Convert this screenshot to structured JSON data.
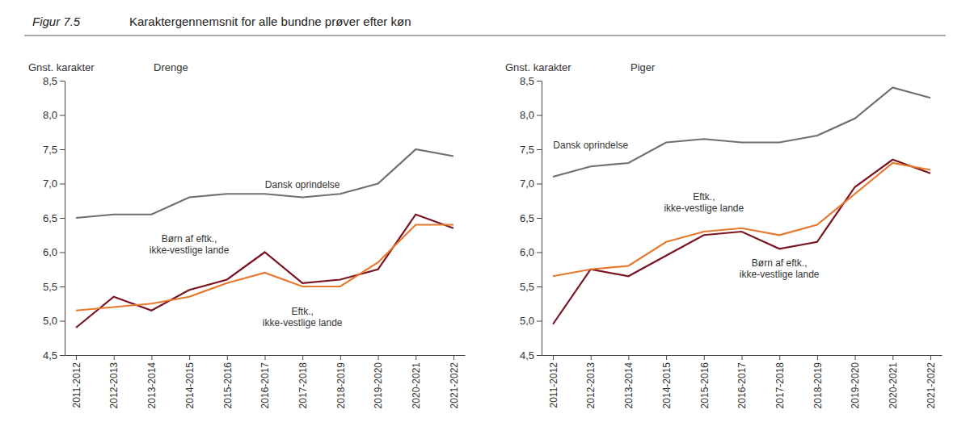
{
  "figure": {
    "label": "Figur 7.5",
    "title": "Karaktergennemsnit for alle bundne prøver efter køn"
  },
  "chart_data": [
    {
      "type": "line",
      "title": "Drenge",
      "y_label": "Gnst. karakter",
      "categories": [
        "2011-2012",
        "2012-2013",
        "2013-2014",
        "2014-2015",
        "2015-2016",
        "2016-2017",
        "2017-2018",
        "2018-2019",
        "2019-2020",
        "2020-2021",
        "2021-2022"
      ],
      "ylim": [
        4.5,
        8.5
      ],
      "yticks": [
        {
          "value": 4.5,
          "label": "4,5"
        },
        {
          "value": 5,
          "label": "5,0"
        },
        {
          "value": 5.5,
          "label": "5,5"
        },
        {
          "value": 6,
          "label": "6,0"
        },
        {
          "value": 6.5,
          "label": "6,5"
        },
        {
          "value": 7,
          "label": "7,0"
        },
        {
          "value": 7.5,
          "label": "7,5"
        },
        {
          "value": 8,
          "label": "8,0"
        },
        {
          "value": 8.5,
          "label": "8,5"
        }
      ],
      "grid": false,
      "series": [
        {
          "name": "Dansk oprindelse",
          "color": "#6d6f71",
          "values": [
            6.5,
            6.55,
            6.55,
            6.8,
            6.85,
            6.85,
            6.8,
            6.85,
            7.0,
            7.5,
            7.4
          ]
        },
        {
          "name": "Børn af eftk., ikke-vestlige lande",
          "color": "#7a1420",
          "values": [
            4.9,
            5.35,
            5.15,
            5.45,
            5.6,
            6.0,
            5.55,
            5.6,
            5.75,
            6.55,
            6.35
          ]
        },
        {
          "name": "Eftk., ikke-vestlige lande",
          "color": "#e8772e",
          "values": [
            5.15,
            5.2,
            5.25,
            5.35,
            5.55,
            5.7,
            5.5,
            5.5,
            5.85,
            6.4,
            6.4
          ]
        }
      ]
    },
    {
      "type": "line",
      "title": "Piger",
      "y_label": "Gnst. karakter",
      "categories": [
        "2011-2012",
        "2012-2013",
        "2013-2014",
        "2014-2015",
        "2015-2016",
        "2016-2017",
        "2017-2018",
        "2018-2019",
        "2019-2020",
        "2020-2021",
        "2021-2022"
      ],
      "ylim": [
        4.5,
        8.5
      ],
      "yticks": [
        {
          "value": 4.5,
          "label": "4,5"
        },
        {
          "value": 5,
          "label": "5,0"
        },
        {
          "value": 5.5,
          "label": "5,5"
        },
        {
          "value": 6,
          "label": "6,0"
        },
        {
          "value": 6.5,
          "label": "6,5"
        },
        {
          "value": 7,
          "label": "7,0"
        },
        {
          "value": 7.5,
          "label": "7,5"
        },
        {
          "value": 8,
          "label": "8,0"
        },
        {
          "value": 8.5,
          "label": "8,5"
        }
      ],
      "grid": false,
      "series": [
        {
          "name": "Dansk oprindelse",
          "color": "#6d6f71",
          "values": [
            7.1,
            7.25,
            7.3,
            7.6,
            7.65,
            7.6,
            7.6,
            7.7,
            7.95,
            8.4,
            8.25
          ]
        },
        {
          "name": "Børn af eftk., ikke-vestlige lande",
          "color": "#7a1420",
          "values": [
            4.95,
            5.75,
            5.65,
            5.95,
            6.25,
            6.3,
            6.05,
            6.15,
            6.95,
            7.35,
            7.15
          ]
        },
        {
          "name": "Eftk., ikke-vestlige lande",
          "color": "#e8772e",
          "values": [
            5.65,
            5.75,
            5.8,
            6.15,
            6.3,
            6.35,
            6.25,
            6.4,
            6.85,
            7.3,
            7.2
          ]
        }
      ]
    }
  ]
}
